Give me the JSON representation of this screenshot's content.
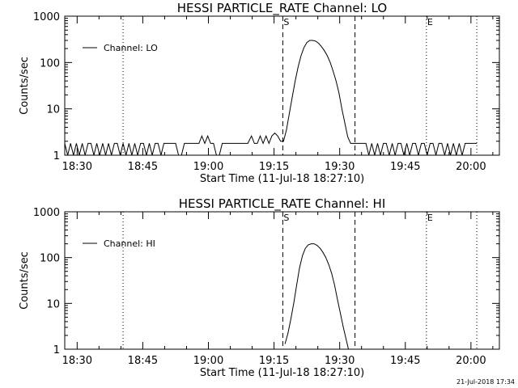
{
  "chart_data": [
    {
      "type": "line",
      "title": "HESSI PARTICLE_RATE Channel: LO",
      "xlabel": "Start Time (11-Jul-18 18:27:10)",
      "ylabel": "Counts/sec",
      "yscale": "log",
      "xlim": [
        "18:27:10",
        "20:06:30"
      ],
      "ylim": [
        1,
        1000
      ],
      "x_ticks": [
        "18:30",
        "18:45",
        "19:00",
        "19:15",
        "19:30",
        "19:45",
        "20:00"
      ],
      "y_ticks": [
        "1",
        "10",
        "100",
        "1000"
      ],
      "legend": {
        "position": "top-left",
        "entries": [
          "Channel: LO"
        ]
      },
      "markers": [
        {
          "label": "S",
          "time": "19:17:00",
          "style": "dashed"
        },
        {
          "label": "",
          "time": "19:33:30",
          "style": "dashed"
        },
        {
          "label": "",
          "time": "18:40:30",
          "style": "dotted"
        },
        {
          "label": "E",
          "time": "19:49:50",
          "style": "dotted"
        },
        {
          "label": "",
          "time": "20:01:20",
          "style": "dotted"
        }
      ],
      "series": [
        {
          "name": "Channel: LO",
          "points": [
            [
              "18:27:10",
              1.8
            ],
            [
              "18:27:50",
              1.0
            ],
            [
              "18:28:30",
              1.8
            ],
            [
              "18:29:10",
              1.0
            ],
            [
              "18:29:50",
              1.8
            ],
            [
              "18:30:30",
              1.0
            ],
            [
              "18:31:10",
              1.8
            ],
            [
              "18:31:50",
              1.0
            ],
            [
              "18:32:30",
              1.8
            ],
            [
              "18:33:10",
              1.8
            ],
            [
              "18:33:50",
              1.0
            ],
            [
              "18:34:30",
              1.8
            ],
            [
              "18:35:10",
              1.0
            ],
            [
              "18:35:50",
              1.8
            ],
            [
              "18:36:30",
              1.0
            ],
            [
              "18:37:10",
              1.8
            ],
            [
              "18:37:50",
              1.0
            ],
            [
              "18:38:30",
              1.8
            ],
            [
              "18:39:10",
              1.8
            ],
            [
              "18:39:50",
              1.0
            ],
            [
              "18:40:30",
              1.8
            ],
            [
              "18:41:10",
              1.0
            ],
            [
              "18:41:50",
              1.8
            ],
            [
              "18:42:30",
              1.0
            ],
            [
              "18:43:10",
              1.8
            ],
            [
              "18:43:50",
              1.0
            ],
            [
              "18:44:30",
              1.8
            ],
            [
              "18:45:10",
              1.8
            ],
            [
              "18:45:50",
              1.0
            ],
            [
              "18:46:30",
              1.8
            ],
            [
              "18:47:10",
              1.0
            ],
            [
              "18:47:50",
              1.8
            ],
            [
              "18:48:30",
              1.8
            ],
            [
              "18:49:10",
              1.0
            ],
            [
              "18:49:50",
              1.8
            ],
            [
              "18:50:30",
              1.8
            ],
            [
              "18:51:10",
              1.8
            ],
            [
              "18:51:50",
              1.8
            ],
            [
              "18:52:30",
              1.8
            ],
            [
              "18:53:10",
              1.0
            ],
            [
              "18:53:50",
              1.0
            ],
            [
              "18:54:30",
              1.8
            ],
            [
              "18:55:10",
              1.8
            ],
            [
              "18:55:50",
              1.8
            ],
            [
              "18:56:30",
              1.8
            ],
            [
              "18:57:10",
              1.8
            ],
            [
              "18:57:50",
              1.8
            ],
            [
              "18:58:30",
              2.6
            ],
            [
              "18:59:10",
              1.8
            ],
            [
              "18:59:50",
              2.6
            ],
            [
              "19:00:30",
              1.8
            ],
            [
              "19:01:10",
              1.8
            ],
            [
              "19:01:50",
              1.0
            ],
            [
              "19:02:30",
              1.0
            ],
            [
              "19:03:10",
              1.8
            ],
            [
              "19:03:50",
              1.8
            ],
            [
              "19:05:00",
              1.8
            ],
            [
              "19:07:00",
              1.8
            ],
            [
              "19:09:00",
              1.8
            ],
            [
              "19:09:50",
              2.6
            ],
            [
              "19:10:30",
              1.8
            ],
            [
              "19:11:10",
              1.8
            ],
            [
              "19:11:50",
              2.6
            ],
            [
              "19:12:30",
              1.8
            ],
            [
              "19:13:10",
              2.6
            ],
            [
              "19:13:50",
              1.8
            ],
            [
              "19:14:30",
              2.6
            ],
            [
              "19:15:10",
              3.0
            ],
            [
              "19:15:50",
              2.6
            ],
            [
              "19:16:30",
              2.0
            ],
            [
              "19:17:10",
              2.0
            ],
            [
              "19:17:50",
              3.5
            ],
            [
              "19:18:30",
              8.0
            ],
            [
              "19:19:10",
              18
            ],
            [
              "19:19:50",
              40
            ],
            [
              "19:20:30",
              80
            ],
            [
              "19:21:10",
              140
            ],
            [
              "19:21:50",
              210
            ],
            [
              "19:22:30",
              270
            ],
            [
              "19:23:10",
              300
            ],
            [
              "19:23:50",
              300
            ],
            [
              "19:24:30",
              290
            ],
            [
              "19:25:10",
              260
            ],
            [
              "19:25:50",
              220
            ],
            [
              "19:26:30",
              180
            ],
            [
              "19:27:10",
              140
            ],
            [
              "19:27:50",
              100
            ],
            [
              "19:28:30",
              65
            ],
            [
              "19:29:10",
              40
            ],
            [
              "19:29:50",
              22
            ],
            [
              "19:30:30",
              10
            ],
            [
              "19:31:10",
              5
            ],
            [
              "19:31:50",
              2.5
            ],
            [
              "19:32:30",
              1.8
            ],
            [
              "19:33:10",
              1.8
            ],
            [
              "19:33:50",
              1.8
            ],
            [
              "19:35:00",
              1.8
            ],
            [
              "19:36:00",
              1.8
            ],
            [
              "19:36:40",
              1.0
            ],
            [
              "19:37:20",
              1.8
            ],
            [
              "19:38:00",
              1.0
            ],
            [
              "19:38:40",
              1.8
            ],
            [
              "19:39:20",
              1.0
            ],
            [
              "19:40:00",
              1.8
            ],
            [
              "19:40:40",
              1.8
            ],
            [
              "19:41:20",
              1.0
            ],
            [
              "19:42:00",
              1.8
            ],
            [
              "19:42:40",
              1.0
            ],
            [
              "19:43:20",
              1.8
            ],
            [
              "19:44:00",
              1.8
            ],
            [
              "19:44:40",
              1.0
            ],
            [
              "19:45:20",
              1.8
            ],
            [
              "19:46:00",
              1.0
            ],
            [
              "19:46:40",
              1.8
            ],
            [
              "19:47:20",
              1.8
            ],
            [
              "19:48:00",
              1.0
            ],
            [
              "19:48:40",
              1.8
            ],
            [
              "19:49:20",
              1.8
            ],
            [
              "19:50:00",
              1.0
            ],
            [
              "19:50:40",
              1.8
            ],
            [
              "19:51:20",
              1.8
            ],
            [
              "19:52:00",
              1.0
            ],
            [
              "19:52:40",
              1.8
            ],
            [
              "19:53:20",
              1.8
            ],
            [
              "19:54:00",
              1.0
            ],
            [
              "19:54:40",
              1.8
            ],
            [
              "19:55:20",
              1.0
            ],
            [
              "19:56:00",
              1.8
            ],
            [
              "19:56:40",
              1.0
            ],
            [
              "19:57:20",
              1.8
            ],
            [
              "19:58:00",
              1.0
            ],
            [
              "19:58:40",
              1.8
            ],
            [
              "19:59:20",
              1.8
            ],
            [
              "20:00:00",
              1.8
            ],
            [
              "20:00:40",
              1.8
            ],
            [
              "20:01:20",
              1.8
            ]
          ]
        }
      ]
    },
    {
      "type": "line",
      "title": "HESSI PARTICLE_RATE Channel: HI",
      "xlabel": "Start Time (11-Jul-18 18:27:10)",
      "ylabel": "Counts/sec",
      "yscale": "log",
      "xlim": [
        "18:27:10",
        "20:06:30"
      ],
      "ylim": [
        1,
        1000
      ],
      "x_ticks": [
        "18:30",
        "18:45",
        "19:00",
        "19:15",
        "19:30",
        "19:45",
        "20:00"
      ],
      "y_ticks": [
        "1",
        "10",
        "100",
        "1000"
      ],
      "legend": {
        "position": "top-left",
        "entries": [
          "Channel: HI"
        ]
      },
      "markers": [
        {
          "label": "S",
          "time": "19:17:00",
          "style": "dashed"
        },
        {
          "label": "",
          "time": "19:33:30",
          "style": "dashed"
        },
        {
          "label": "",
          "time": "18:40:30",
          "style": "dotted"
        },
        {
          "label": "E",
          "time": "19:49:50",
          "style": "dotted"
        },
        {
          "label": "",
          "time": "20:01:20",
          "style": "dotted"
        }
      ],
      "series": [
        {
          "name": "Channel: HI",
          "points": [
            [
              "19:17:30",
              1.3
            ],
            [
              "19:18:10",
              2.2
            ],
            [
              "19:18:50",
              4.5
            ],
            [
              "19:19:30",
              10
            ],
            [
              "19:20:10",
              25
            ],
            [
              "19:20:50",
              60
            ],
            [
              "19:21:30",
              110
            ],
            [
              "19:22:10",
              160
            ],
            [
              "19:22:50",
              190
            ],
            [
              "19:23:30",
              200
            ],
            [
              "19:24:10",
              200
            ],
            [
              "19:24:50",
              185
            ],
            [
              "19:25:30",
              160
            ],
            [
              "19:26:10",
              130
            ],
            [
              "19:26:50",
              100
            ],
            [
              "19:27:30",
              70
            ],
            [
              "19:28:10",
              45
            ],
            [
              "19:28:50",
              25
            ],
            [
              "19:29:30",
              12
            ],
            [
              "19:30:10",
              6
            ],
            [
              "19:30:50",
              3
            ],
            [
              "19:31:30",
              1.6
            ],
            [
              "19:32:00",
              1.0
            ]
          ]
        }
      ]
    }
  ],
  "footer": {
    "timestamp": "21-Jul-2018 17:34"
  }
}
